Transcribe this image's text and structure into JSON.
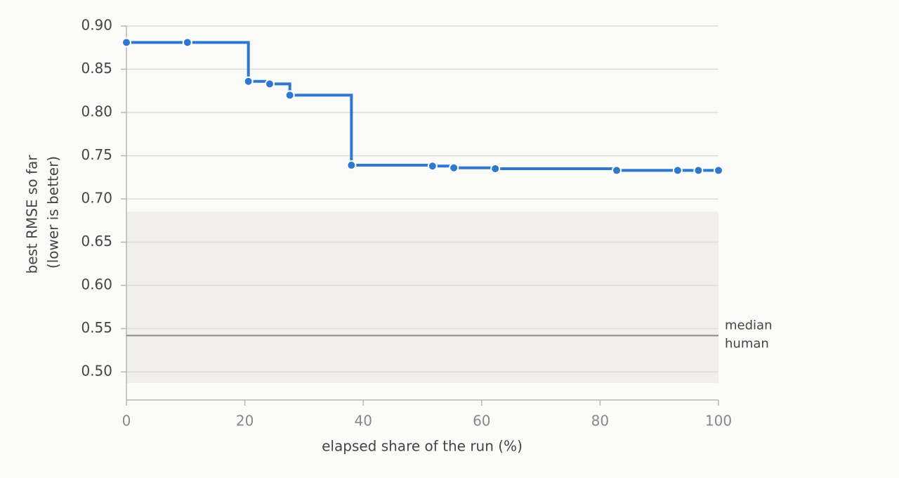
{
  "chart_data": {
    "type": "step",
    "x_label": "elapsed share of the run (%)",
    "y_label": [
      "best RMSE so far",
      "(lower is better)"
    ],
    "x": [
      0,
      10.3,
      20.6,
      24.2,
      27.6,
      38.0,
      51.7,
      55.3,
      62.3,
      82.8,
      93.1,
      96.6,
      100
    ],
    "series": [
      {
        "color": "#2f78d0",
        "values": [
          0.881,
          0.881,
          0.836,
          0.833,
          0.82,
          0.739,
          0.738,
          0.736,
          0.735,
          0.733,
          0.733,
          0.733,
          0.733
        ]
      }
    ],
    "human_band": [
      0.487,
      0.685
    ],
    "band_color": "#f0efeb",
    "median_human": 0.542,
    "median_label": [
      "median",
      "human"
    ],
    "xlim": [
      0,
      100
    ],
    "xticks": [
      0,
      20,
      40,
      60,
      80,
      100
    ],
    "ylim": [
      0.4675,
      0.9
    ],
    "yticks": [
      {
        "value": 0.5,
        "label": "0.50"
      },
      {
        "value": 0.55,
        "label": "0.55"
      },
      {
        "value": 0.6,
        "label": "0.60"
      },
      {
        "value": 0.65,
        "label": "0.65"
      },
      {
        "value": 0.7,
        "label": "0.70"
      },
      {
        "value": 0.75,
        "label": "0.75"
      },
      {
        "value": 0.8,
        "label": "0.80"
      },
      {
        "value": 0.85,
        "label": "0.85"
      },
      {
        "value": 0.9,
        "label": "0.90"
      }
    ],
    "grid": true
  }
}
